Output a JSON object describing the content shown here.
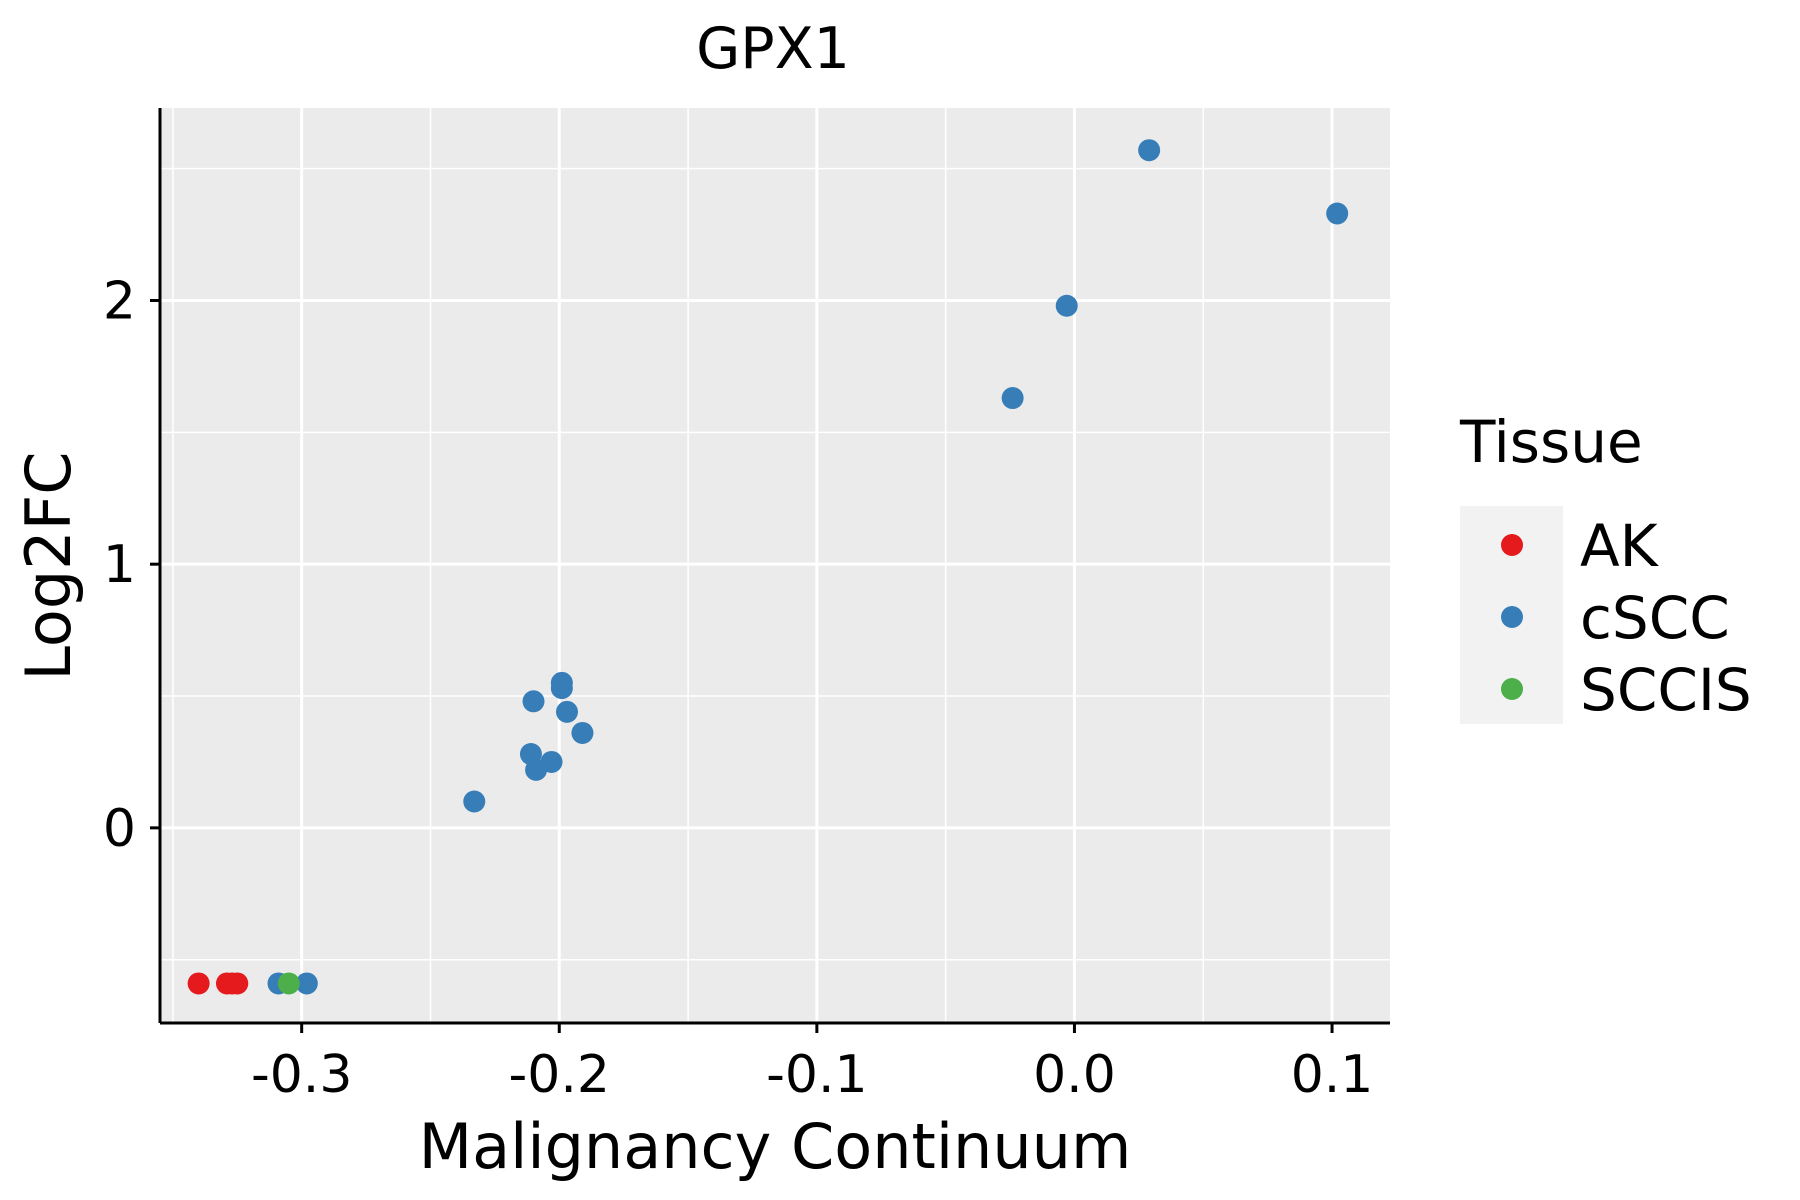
{
  "chart_data": {
    "type": "scatter",
    "title": "GPX1",
    "xlabel": "Malignancy Continuum",
    "ylabel": "Log2FC",
    "xlim": [
      -0.355,
      0.1225
    ],
    "ylim": [
      -0.74,
      2.73
    ],
    "x_ticks": [
      -0.3,
      -0.2,
      -0.1,
      0.0,
      0.1
    ],
    "x_tick_labels": [
      "-0.3",
      "-0.2",
      "-0.1",
      "0.0",
      "0.1"
    ],
    "y_ticks": [
      0,
      1,
      2
    ],
    "y_tick_labels": [
      "0",
      "1",
      "2"
    ],
    "grid": true,
    "legend": {
      "title": "Tissue",
      "position": "right"
    },
    "series": [
      {
        "name": "AK",
        "color": "#E41A1C",
        "points": [
          {
            "x": -0.34,
            "y": -0.59
          },
          {
            "x": -0.329,
            "y": -0.59
          },
          {
            "x": -0.327,
            "y": -0.59
          },
          {
            "x": -0.325,
            "y": -0.59
          }
        ]
      },
      {
        "name": "cSCC",
        "color": "#377EB8",
        "points": [
          {
            "x": -0.309,
            "y": -0.59
          },
          {
            "x": -0.298,
            "y": -0.59
          },
          {
            "x": -0.233,
            "y": 0.1
          },
          {
            "x": -0.21,
            "y": 0.48
          },
          {
            "x": -0.211,
            "y": 0.28
          },
          {
            "x": -0.209,
            "y": 0.22
          },
          {
            "x": -0.203,
            "y": 0.25
          },
          {
            "x": -0.199,
            "y": 0.55
          },
          {
            "x": -0.199,
            "y": 0.53
          },
          {
            "x": -0.197,
            "y": 0.44
          },
          {
            "x": -0.191,
            "y": 0.36
          },
          {
            "x": -0.024,
            "y": 1.63
          },
          {
            "x": -0.003,
            "y": 1.98
          },
          {
            "x": 0.029,
            "y": 2.57
          },
          {
            "x": 0.102,
            "y": 2.33
          }
        ]
      },
      {
        "name": "SCCIS",
        "color": "#4DAF4A",
        "points": [
          {
            "x": -0.305,
            "y": -0.59
          }
        ]
      }
    ]
  }
}
